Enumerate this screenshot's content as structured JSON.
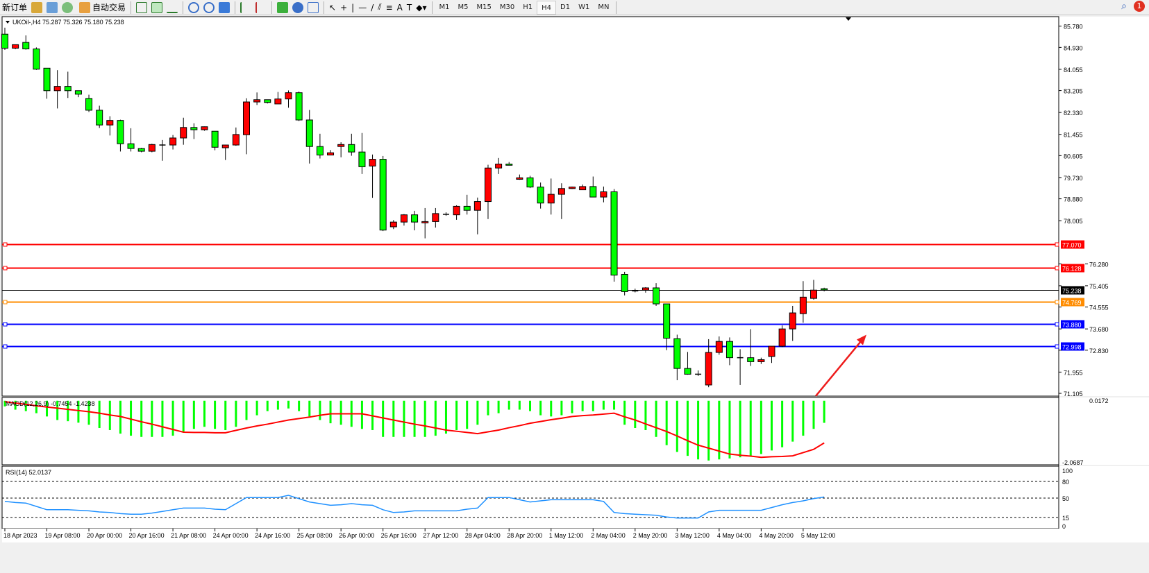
{
  "toolbar": {
    "new_order": "新订单",
    "auto_trading": "自动交易",
    "timeframes": [
      "M1",
      "M5",
      "M15",
      "M30",
      "H1",
      "H4",
      "D1",
      "W1",
      "MN"
    ],
    "active_timeframe": "H4",
    "notification_count": "1",
    "icons": [
      "open-folder-icon",
      "market-watch-icon",
      "signals-icon",
      "bar-chart-icon",
      "candlestick-icon",
      "line-chart-icon",
      "zoom-in-icon",
      "zoom-out-icon",
      "tile-windows-icon",
      "auto-scroll-icon",
      "chart-shift-icon",
      "indicators-icon",
      "periods-icon",
      "templates-icon",
      "cursor-icon",
      "crosshair-icon",
      "vertical-line-icon",
      "horizontal-line-icon",
      "trendline-icon",
      "equidistant-channel-icon",
      "fibonacci-icon",
      "text-icon",
      "text-label-icon",
      "arrows-icon"
    ]
  },
  "chart_data": {
    "type": "candlestick",
    "symbol_header": "UKOil-,H4  75.287 75.326 75.180 75.238",
    "ohlc_order": [
      "open",
      "high",
      "low",
      "close"
    ],
    "up_color": "#ff0000",
    "down_color": "#00ff00",
    "ylim": [
      71.105,
      85.78
    ],
    "price_ticks": [
      "85.780",
      "84.930",
      "84.055",
      "83.205",
      "82.330",
      "81.455",
      "80.605",
      "79.730",
      "78.880",
      "78.005",
      "76.280",
      "75.405",
      "74.555",
      "73.680",
      "72.830",
      "71.955",
      "71.105"
    ],
    "time_labels": [
      "18 Apr 2023",
      "19 Apr 08:00",
      "20 Apr 00:00",
      "20 Apr 16:00",
      "21 Apr 08:00",
      "24 Apr 00:00",
      "24 Apr 16:00",
      "25 Apr 08:00",
      "26 Apr 00:00",
      "26 Apr 16:00",
      "27 Apr 12:00",
      "28 Apr 04:00",
      "28 Apr 20:00",
      "1 May 12:00",
      "2 May 04:00",
      "2 May 20:00",
      "3 May 12:00",
      "4 May 04:00",
      "4 May 20:00",
      "5 May 12:00"
    ],
    "candles": [
      [
        85.46,
        85.72,
        84.83,
        84.9
      ],
      [
        84.9,
        85.04,
        84.86,
        85.04
      ],
      [
        85.13,
        85.41,
        84.84,
        84.87
      ],
      [
        84.87,
        84.93,
        84.03,
        84.06
      ],
      [
        84.1,
        84.1,
        82.88,
        83.2
      ],
      [
        83.2,
        84.02,
        82.49,
        83.37
      ],
      [
        83.37,
        83.96,
        82.91,
        83.2
      ],
      [
        83.2,
        83.2,
        82.94,
        83.06
      ],
      [
        82.89,
        83.04,
        82.35,
        82.42
      ],
      [
        82.42,
        82.6,
        81.71,
        81.83
      ],
      [
        81.83,
        82.18,
        81.41,
        82.01
      ],
      [
        82.01,
        82.04,
        80.77,
        81.08
      ],
      [
        81.08,
        81.7,
        80.77,
        80.89
      ],
      [
        80.89,
        80.92,
        80.74,
        80.78
      ],
      [
        80.78,
        81.08,
        80.74,
        81.05
      ],
      [
        81.03,
        81.23,
        80.4,
        81.03
      ],
      [
        81.03,
        81.43,
        80.85,
        81.31
      ],
      [
        81.31,
        82.12,
        81.04,
        81.73
      ],
      [
        81.73,
        81.9,
        81.27,
        81.64
      ],
      [
        81.64,
        81.77,
        81.6,
        81.76
      ],
      [
        81.58,
        81.58,
        80.82,
        80.94
      ],
      [
        80.92,
        81.04,
        80.43,
        81.03
      ],
      [
        81.03,
        81.73,
        81.0,
        81.45
      ],
      [
        81.44,
        82.9,
        80.66,
        82.75
      ],
      [
        82.75,
        83.13,
        82.63,
        82.84
      ],
      [
        82.84,
        82.84,
        82.69,
        82.73
      ],
      [
        82.67,
        83.15,
        82.67,
        82.87
      ],
      [
        82.87,
        83.21,
        82.52,
        83.12
      ],
      [
        83.12,
        83.17,
        81.99,
        82.03
      ],
      [
        82.03,
        82.43,
        80.29,
        80.97
      ],
      [
        80.97,
        81.48,
        80.49,
        80.63
      ],
      [
        80.63,
        80.83,
        80.62,
        80.72
      ],
      [
        80.97,
        81.14,
        80.54,
        81.05
      ],
      [
        81.05,
        81.48,
        80.6,
        80.75
      ],
      [
        80.75,
        81.51,
        79.87,
        80.16
      ],
      [
        80.19,
        80.65,
        78.92,
        80.46
      ],
      [
        80.46,
        80.59,
        77.59,
        77.63
      ],
      [
        77.76,
        78.03,
        77.67,
        77.95
      ],
      [
        77.95,
        78.27,
        77.81,
        78.24
      ],
      [
        78.24,
        78.4,
        77.62,
        77.95
      ],
      [
        77.92,
        78.51,
        77.3,
        77.97
      ],
      [
        77.97,
        78.51,
        77.73,
        78.29
      ],
      [
        78.26,
        78.34,
        78.2,
        78.26
      ],
      [
        78.24,
        78.62,
        78.04,
        78.58
      ],
      [
        78.58,
        79.04,
        78.25,
        78.42
      ],
      [
        78.42,
        78.93,
        77.46,
        78.77
      ],
      [
        78.77,
        80.24,
        78.07,
        80.11
      ],
      [
        80.11,
        80.51,
        79.87,
        80.27
      ],
      [
        80.27,
        80.35,
        80.22,
        80.22
      ],
      [
        79.66,
        79.85,
        79.64,
        79.72
      ],
      [
        79.72,
        79.8,
        79.31,
        79.35
      ],
      [
        79.35,
        79.53,
        78.49,
        78.71
      ],
      [
        78.71,
        79.69,
        78.25,
        79.06
      ],
      [
        79.06,
        79.5,
        78.07,
        79.29
      ],
      [
        79.29,
        79.37,
        79.27,
        79.35
      ],
      [
        79.24,
        79.45,
        79.24,
        79.37
      ],
      [
        79.37,
        79.77,
        78.95,
        78.95
      ],
      [
        78.95,
        79.37,
        78.74,
        79.16
      ],
      [
        79.16,
        79.27,
        75.57,
        75.83
      ],
      [
        75.86,
        75.96,
        75.02,
        75.17
      ],
      [
        75.2,
        75.29,
        75.14,
        75.2
      ],
      [
        75.23,
        75.35,
        75.13,
        75.32
      ],
      [
        75.32,
        75.51,
        74.6,
        74.68
      ],
      [
        74.68,
        74.68,
        72.83,
        73.31
      ],
      [
        73.29,
        73.45,
        71.63,
        72.1
      ],
      [
        72.1,
        72.76,
        71.85,
        71.87
      ],
      [
        71.87,
        72.02,
        71.8,
        71.87
      ],
      [
        71.44,
        73.27,
        71.35,
        72.74
      ],
      [
        72.74,
        73.38,
        72.65,
        73.18
      ],
      [
        73.18,
        73.34,
        72.23,
        72.53
      ],
      [
        72.53,
        72.87,
        71.44,
        72.53
      ],
      [
        72.53,
        73.67,
        72.2,
        72.37
      ],
      [
        72.37,
        72.53,
        72.28,
        72.45
      ],
      [
        72.58,
        72.99,
        72.32,
        72.99
      ],
      [
        72.99,
        73.82,
        72.95,
        73.68
      ],
      [
        73.68,
        74.6,
        73.2,
        74.32
      ],
      [
        74.29,
        75.59,
        73.93,
        74.95
      ],
      [
        74.9,
        75.64,
        74.85,
        75.23
      ],
      [
        75.287,
        75.326,
        75.18,
        75.238
      ]
    ],
    "hlines": [
      {
        "price": 77.07,
        "label": "77.070",
        "color": "#ff0000"
      },
      {
        "price": 76.128,
        "label": "76.128",
        "color": "#ff0000"
      },
      {
        "price": 75.238,
        "label": "75.238",
        "color": "#000000"
      },
      {
        "price": 74.769,
        "label": "74.769",
        "color": "#ff8c00"
      },
      {
        "price": 73.88,
        "label": "73.880",
        "color": "#0000ff"
      },
      {
        "price": 72.998,
        "label": "72.998",
        "color": "#0000ff"
      }
    ],
    "arrow": {
      "color": "#ee1c1c",
      "from_price": 71.0,
      "to_price": 73.45
    },
    "macd": {
      "label": "MACD(12,26,9) -0.7454 -1.4238",
      "ticks": [
        "0.0172",
        "-2.0687"
      ],
      "ylim": [
        -2.0687,
        0.0172
      ],
      "hist_color": "#00ff00",
      "signal_color": "#ff0000",
      "main": [
        -0.19,
        -0.3,
        -0.35,
        -0.42,
        -0.53,
        -0.65,
        -0.69,
        -0.74,
        -0.81,
        -0.92,
        -0.99,
        -1.11,
        -1.18,
        -1.22,
        -1.22,
        -1.22,
        -1.18,
        -1.04,
        -0.95,
        -0.88,
        -0.95,
        -0.99,
        -0.88,
        -0.65,
        -0.49,
        -0.35,
        -0.3,
        -0.26,
        -0.35,
        -0.53,
        -0.65,
        -0.76,
        -0.81,
        -0.88,
        -0.95,
        -0.99,
        -1.22,
        -1.22,
        -1.22,
        -1.22,
        -1.22,
        -1.18,
        -1.11,
        -0.99,
        -0.95,
        -0.81,
        -0.49,
        -0.42,
        -0.3,
        -0.3,
        -0.35,
        -0.49,
        -0.53,
        -0.49,
        -0.42,
        -0.35,
        -0.35,
        -0.3,
        -0.3,
        -0.81,
        -0.92,
        -0.99,
        -1.22,
        -1.5,
        -1.73,
        -1.86,
        -1.98,
        -2.02,
        -1.98,
        -1.95,
        -1.91,
        -1.86,
        -1.8,
        -1.68,
        -1.57,
        -1.38,
        -1.18,
        -0.95,
        -0.7454
      ],
      "signal": [
        -0.03,
        -0.08,
        -0.12,
        -0.17,
        -0.21,
        -0.25,
        -0.29,
        -0.33,
        -0.37,
        -0.42,
        -0.48,
        -0.53,
        -0.62,
        -0.71,
        -0.79,
        -0.88,
        -0.97,
        -1.06,
        -1.07,
        -1.07,
        -1.08,
        -1.08,
        -1.0,
        -0.92,
        -0.85,
        -0.79,
        -0.72,
        -0.65,
        -0.6,
        -0.55,
        -0.49,
        -0.44,
        -0.44,
        -0.44,
        -0.44,
        -0.51,
        -0.58,
        -0.65,
        -0.72,
        -0.79,
        -0.85,
        -0.92,
        -0.99,
        -1.03,
        -1.07,
        -1.11,
        -1.05,
        -0.99,
        -0.91,
        -0.84,
        -0.76,
        -0.7,
        -0.64,
        -0.59,
        -0.53,
        -0.5,
        -0.48,
        -0.45,
        -0.42,
        -0.54,
        -0.65,
        -0.78,
        -0.91,
        -1.04,
        -1.19,
        -1.35,
        -1.5,
        -1.6,
        -1.7,
        -1.8,
        -1.84,
        -1.87,
        -1.91,
        -1.89,
        -1.88,
        -1.86,
        -1.75,
        -1.64,
        -1.4238
      ]
    },
    "rsi": {
      "label": "RSI(14) 52.0137",
      "ticks": [
        "100",
        "80",
        "50",
        "15",
        "0"
      ],
      "levels": [
        80,
        50,
        15
      ],
      "ylim": [
        0,
        100
      ],
      "color": "#1e90ff",
      "values": [
        44,
        42,
        41,
        35,
        29,
        29,
        29,
        28,
        27,
        25,
        24,
        22,
        21,
        21,
        23,
        26,
        29,
        32,
        32,
        32,
        30,
        29,
        40,
        51,
        51,
        51,
        51,
        55,
        49,
        43,
        40,
        37,
        38,
        40,
        38,
        37,
        29,
        24,
        25,
        27,
        27,
        27,
        27,
        27,
        30,
        32,
        51,
        51,
        51,
        47,
        43,
        45,
        47,
        47,
        47,
        47,
        47,
        44,
        24,
        22,
        21,
        20,
        19,
        16,
        14,
        14,
        14,
        25,
        28,
        28,
        28,
        28,
        28,
        33,
        38,
        42,
        45,
        49,
        52.0137
      ]
    }
  }
}
